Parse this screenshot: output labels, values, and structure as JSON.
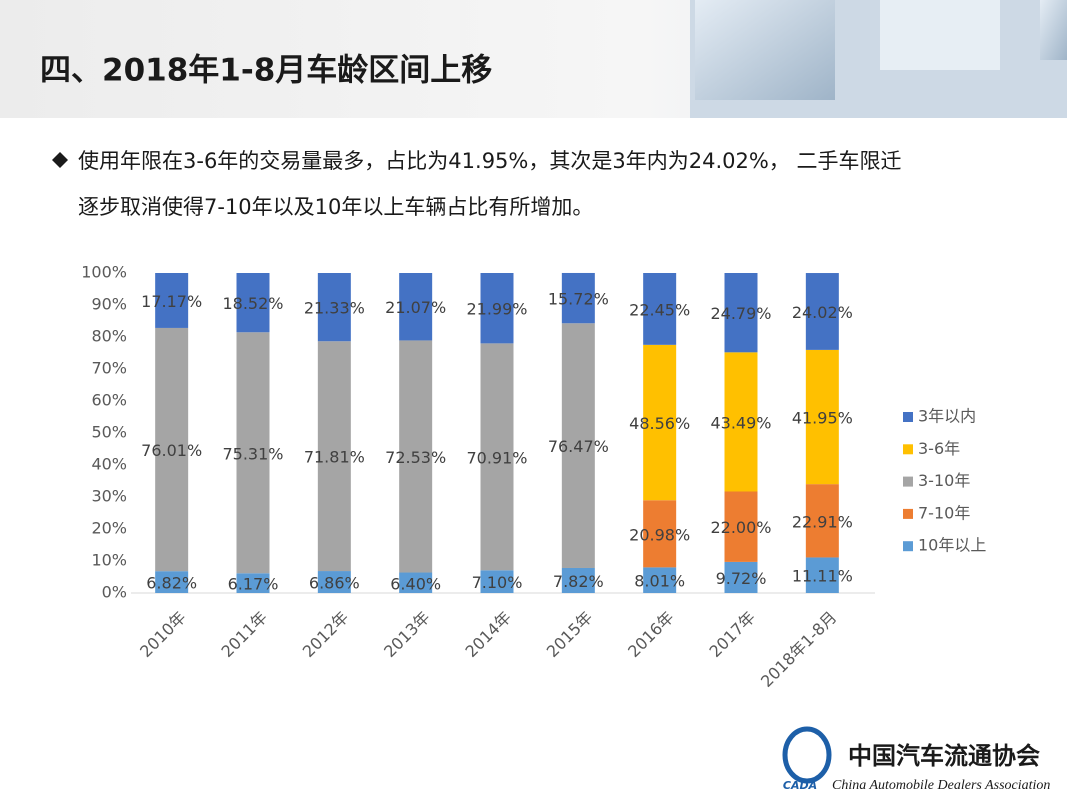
{
  "slide": {
    "title": "四、2018年1-8月车龄区间上移",
    "bullet": [
      "使用年限在3-6年的交易量最多，占比为41.95%，其次是3年内为24.02%， 二手车限迁",
      "逐步取消使得7-10年以及10年以上车辆占比有所增加。"
    ],
    "logo": {
      "name": "中国汽车流通协会",
      "english": "China Automobile Dealers Association",
      "mark": "CADA"
    }
  },
  "chart_data": {
    "type": "stacked_bar",
    "categories": [
      "2010年",
      "2011年",
      "2012年",
      "2013年",
      "2014年",
      "2015年",
      "2016年",
      "2017年",
      "2018年1-8月"
    ],
    "series": [
      {
        "name": "10年以上",
        "color": "#5b9bd5",
        "values": [
          6.82,
          6.17,
          6.86,
          6.4,
          7.1,
          7.82,
          8.01,
          9.72,
          11.11
        ],
        "value_labels": [
          "6.82%",
          "6.17%",
          "6.86%",
          "6.40%",
          "7.10%",
          "7.82%",
          "8.01%",
          "9.72%",
          "11.11%"
        ]
      },
      {
        "name": "7-10年",
        "color": "#ed7d31",
        "values": [
          null,
          null,
          null,
          null,
          null,
          null,
          20.98,
          22.0,
          22.91
        ],
        "value_labels": [
          null,
          null,
          null,
          null,
          null,
          null,
          "20.98%",
          "22.00%",
          "22.91%"
        ]
      },
      {
        "name": "3-10年",
        "color": "#a5a5a5",
        "values": [
          76.01,
          75.31,
          71.81,
          72.53,
          70.91,
          76.47,
          null,
          null,
          null
        ],
        "value_labels": [
          "76.01%",
          "75.31%",
          "71.81%",
          "72.53%",
          "70.91%",
          "76.47%",
          null,
          null,
          null
        ]
      },
      {
        "name": "3-6年",
        "color": "#ffc000",
        "values": [
          null,
          null,
          null,
          null,
          null,
          null,
          48.56,
          43.49,
          41.95
        ],
        "value_labels": [
          null,
          null,
          null,
          null,
          null,
          null,
          "48.56%",
          "43.49%",
          "41.95%"
        ]
      },
      {
        "name": "3年以内",
        "color": "#4472c4",
        "values": [
          17.17,
          18.52,
          21.33,
          21.07,
          21.99,
          15.72,
          22.45,
          24.79,
          24.02
        ],
        "value_labels": [
          "17.17%",
          "18.52%",
          "21.33%",
          "21.07%",
          "21.99%",
          "15.72%",
          "22.45%",
          "24.79%",
          "24.02%"
        ]
      }
    ],
    "ylim": [
      0,
      100
    ],
    "yticks": [
      {
        "value": 0,
        "label": "0%"
      },
      {
        "value": 10,
        "label": "10%"
      },
      {
        "value": 20,
        "label": "20%"
      },
      {
        "value": 30,
        "label": "30%"
      },
      {
        "value": 40,
        "label": "40%"
      },
      {
        "value": 50,
        "label": "50%"
      },
      {
        "value": 60,
        "label": "60%"
      },
      {
        "value": 70,
        "label": "70%"
      },
      {
        "value": 80,
        "label": "80%"
      },
      {
        "value": 90,
        "label": "90%"
      },
      {
        "value": 100,
        "label": "100%"
      }
    ],
    "legend": "right",
    "grid": false
  }
}
